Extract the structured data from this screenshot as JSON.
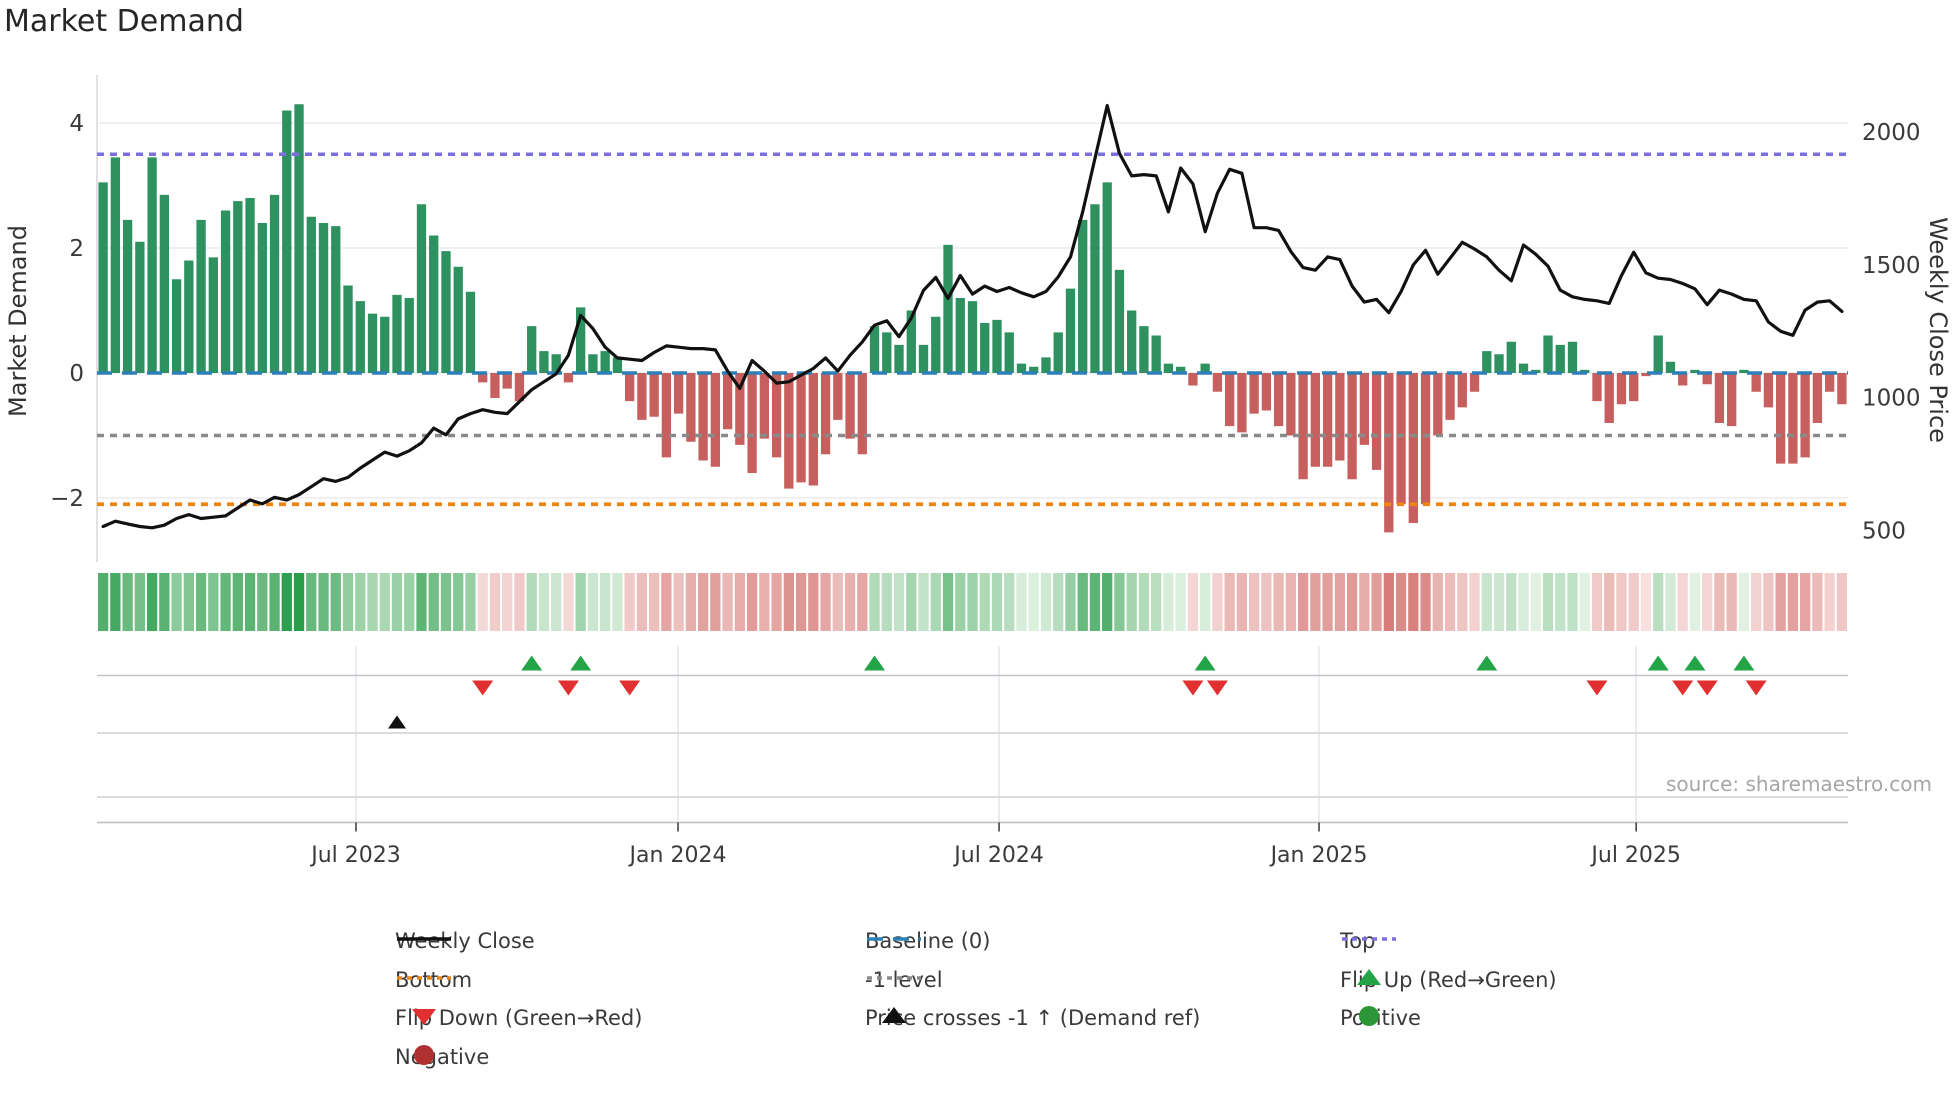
{
  "title": "Market Demand",
  "axes": {
    "y_left_label": "Market Demand",
    "y_right_label": "Weekly Close Price",
    "source_note": "source: sharemaestro.com"
  },
  "colors": {
    "bar_positive": "#2e9160",
    "bar_negative": "#c75f5e",
    "price_line": "#111111",
    "baseline": "#2d7fb8",
    "top_line": "#7b6fe0",
    "bottom_line": "#ee8512",
    "minus1_line": "#8a8a8a",
    "flip_up": "#22a447",
    "flip_down": "#e22f2f",
    "positive_dot": "#2a9637",
    "negative_dot": "#b03030",
    "grid": "#ebebf0",
    "lane_line": "#cfcfd4",
    "tick_text": "#3a3a3a"
  },
  "chart_data": {
    "type": "bar+line",
    "title": "Market Demand",
    "ylabel_left": "Market Demand",
    "ylabel_right": "Weekly Close Price",
    "ylim_left": [
      -3.1,
      4.75
    ],
    "ylim_right_labels": [
      500,
      1000,
      1500,
      2000
    ],
    "y_left_ticks": [
      {
        "label": "4",
        "value": 4
      },
      {
        "label": "2",
        "value": 2
      },
      {
        "label": "0",
        "value": 0
      },
      {
        "label": "−2",
        "value": -2
      }
    ],
    "y_right_ticks": [
      {
        "label": "2000",
        "value": 2000
      },
      {
        "label": "1500",
        "value": 1500
      },
      {
        "label": "1000",
        "value": 1000
      },
      {
        "label": "500",
        "value": 500
      }
    ],
    "x_ticks": [
      {
        "label": "Jul 2023",
        "week": 20.65
      },
      {
        "label": "Jan 2024",
        "week": 46.95
      },
      {
        "label": "Jul 2024",
        "week": 73.17
      },
      {
        "label": "Jan 2025",
        "week": 99.3
      },
      {
        "label": "Jul 2025",
        "week": 125.2
      }
    ],
    "ref_lines": {
      "baseline": 0,
      "top": 3.5,
      "minus1": -1,
      "bottom": -2.1
    },
    "series": [
      {
        "name": "Market Demand (weekly bars)",
        "values": [
          3.05,
          3.45,
          2.45,
          2.1,
          3.45,
          2.85,
          1.5,
          1.8,
          2.45,
          1.85,
          2.6,
          2.75,
          2.8,
          2.4,
          2.85,
          4.2,
          4.3,
          2.5,
          2.4,
          2.35,
          1.4,
          1.15,
          0.95,
          0.9,
          1.25,
          1.2,
          2.7,
          2.2,
          1.95,
          1.7,
          1.3,
          -0.15,
          -0.4,
          -0.25,
          -0.45,
          0.75,
          0.35,
          0.3,
          -0.15,
          1.05,
          0.3,
          0.35,
          0.25,
          -0.45,
          -0.75,
          -0.7,
          -1.35,
          -0.65,
          -1.1,
          -1.4,
          -1.5,
          -0.9,
          -1.15,
          -1.6,
          -1.05,
          -1.35,
          -1.85,
          -1.75,
          -1.8,
          -1.3,
          -0.75,
          -1.05,
          -1.3,
          0.75,
          0.65,
          0.45,
          1.0,
          0.45,
          0.9,
          2.05,
          1.2,
          1.15,
          0.8,
          0.85,
          0.65,
          0.15,
          0.1,
          0.25,
          0.65,
          1.35,
          2.45,
          2.7,
          3.05,
          1.65,
          1.0,
          0.75,
          0.6,
          0.15,
          0.1,
          -0.2,
          0.15,
          -0.3,
          -0.85,
          -0.95,
          -0.65,
          -0.6,
          -0.85,
          -1.0,
          -1.7,
          -1.5,
          -1.5,
          -1.4,
          -1.7,
          -1.15,
          -1.55,
          -2.55,
          -2.1,
          -2.4,
          -2.1,
          -1.0,
          -0.75,
          -0.55,
          -0.3,
          0.35,
          0.3,
          0.5,
          0.15,
          0.05,
          0.6,
          0.45,
          0.5,
          0.05,
          -0.45,
          -0.8,
          -0.5,
          -0.45,
          -0.05,
          0.6,
          0.18,
          -0.2,
          0.05,
          -0.18,
          -0.8,
          -0.85,
          0.05,
          -0.3,
          -0.55,
          -1.45,
          -1.45,
          -1.35,
          -0.8,
          -0.3,
          -0.5
        ]
      },
      {
        "name": "Weekly Close",
        "values": [
          515,
          535,
          525,
          515,
          510,
          520,
          545,
          560,
          545,
          550,
          555,
          585,
          615,
          600,
          625,
          615,
          635,
          665,
          695,
          685,
          700,
          735,
          765,
          795,
          780,
          800,
          830,
          885,
          860,
          920,
          940,
          955,
          945,
          940,
          985,
          1030,
          1060,
          1090,
          1160,
          1310,
          1260,
          1190,
          1150,
          1145,
          1140,
          1170,
          1195,
          1190,
          1185,
          1185,
          1180,
          1100,
          1035,
          1140,
          1100,
          1055,
          1060,
          1085,
          1110,
          1150,
          1100,
          1160,
          1210,
          1273,
          1290,
          1230,
          1300,
          1404,
          1453,
          1374,
          1460,
          1390,
          1420,
          1400,
          1415,
          1395,
          1380,
          1400,
          1455,
          1530,
          1700,
          1900,
          2100,
          1920,
          1835,
          1840,
          1835,
          1700,
          1865,
          1805,
          1625,
          1770,
          1860,
          1845,
          1640,
          1640,
          1630,
          1550,
          1490,
          1480,
          1530,
          1520,
          1420,
          1360,
          1370,
          1320,
          1400,
          1500,
          1555,
          1465,
          1525,
          1585,
          1560,
          1530,
          1480,
          1440,
          1575,
          1540,
          1495,
          1405,
          1380,
          1370,
          1365,
          1355,
          1460,
          1548,
          1470,
          1450,
          1445,
          1430,
          1410,
          1350,
          1405,
          1390,
          1370,
          1365,
          1285,
          1250,
          1235,
          1330,
          1360,
          1365,
          1325
        ]
      }
    ],
    "markers": {
      "flip_up_weeks": [
        35,
        39,
        63,
        90,
        113,
        127,
        130,
        134
      ],
      "flip_down_weeks": [
        31,
        38,
        43,
        89,
        91,
        122,
        129,
        131,
        135
      ],
      "price_cross_weeks": [
        24
      ]
    },
    "heat_strip": "derived from demand values (green positive / red negative, intensity by magnitude)",
    "legend": [
      {
        "label": "Weekly Close",
        "type": "line",
        "color": "#111111",
        "dash": "",
        "row": 0,
        "col": 0
      },
      {
        "label": "Baseline (0)",
        "type": "line",
        "color": "#2d7fb8",
        "dash": "16 10",
        "row": 0,
        "col": 1
      },
      {
        "label": "Top",
        "type": "line",
        "color": "#7b6fe0",
        "dash": "5 5",
        "row": 0,
        "col": 2
      },
      {
        "label": "Bottom",
        "type": "line",
        "color": "#ee8512",
        "dash": "5 5",
        "row": 1,
        "col": 0
      },
      {
        "label": "-1 level",
        "type": "line",
        "color": "#8a8a8a",
        "dash": "5 5",
        "row": 1,
        "col": 1
      },
      {
        "label": "Flip Up (Red→Green)",
        "type": "triangle-up",
        "color": "#22a447",
        "row": 1,
        "col": 2
      },
      {
        "label": "Flip Down (Green→Red)",
        "type": "triangle-down",
        "color": "#e22f2f",
        "row": 2,
        "col": 0
      },
      {
        "label": "Price crosses -1 ↑ (Demand ref)",
        "type": "triangle-up",
        "color": "#111111",
        "row": 2,
        "col": 1
      },
      {
        "label": "Positive",
        "type": "circle",
        "color": "#2a9637",
        "row": 2,
        "col": 2
      },
      {
        "label": "Negative",
        "type": "circle",
        "color": "#b03030",
        "row": 3,
        "col": 0
      }
    ],
    "legend_position": "bottom",
    "grid": true
  }
}
